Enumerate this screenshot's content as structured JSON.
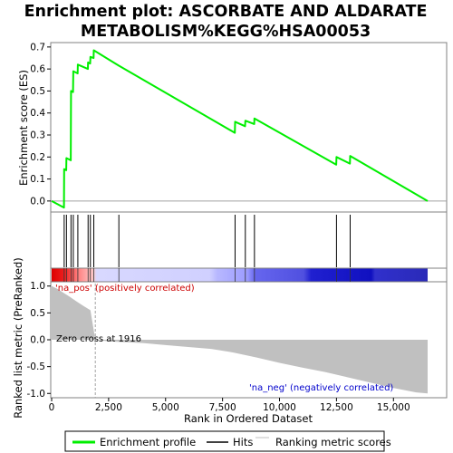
{
  "chart_data": {
    "type": "line",
    "title_line1": "Enrichment plot: ASCORBATE AND ALDARATE",
    "title_line2": "METABOLISM%KEGG%HSA00053",
    "xlabel": "Rank in Ordered Dataset",
    "ylabel_top": "Enrichment score (ES)",
    "ylabel_bottom": "Ranked list metric (PreRanked)",
    "x_ticks": [
      "0",
      "2,500",
      "5,000",
      "7,500",
      "10,000",
      "12,500",
      "15,000"
    ],
    "x_tick_values": [
      0,
      2500,
      5000,
      7500,
      10000,
      12500,
      15000
    ],
    "es_ticks": [
      "0.0",
      "0.1",
      "0.2",
      "0.3",
      "0.4",
      "0.5",
      "0.6",
      "0.7"
    ],
    "es_tick_values": [
      0,
      0.1,
      0.2,
      0.3,
      0.4,
      0.5,
      0.6,
      0.7
    ],
    "metric_ticks": [
      "1.0",
      "0.5",
      "0.0",
      "-0.5",
      "-1.0"
    ],
    "metric_tick_values": [
      1,
      0.5,
      0,
      -0.5,
      -1
    ],
    "xlim": [
      0,
      16500
    ],
    "es_ylim": [
      -0.05,
      0.72
    ],
    "metric_ylim": [
      -1.08,
      1.08
    ],
    "hits": [
      550,
      650,
      850,
      950,
      1150,
      1600,
      1700,
      1850,
      2950,
      8050,
      8500,
      8900,
      12500,
      13100
    ],
    "es_profile": {
      "x": [
        0,
        540,
        550,
        640,
        650,
        840,
        850,
        940,
        950,
        1140,
        1150,
        1590,
        1600,
        1690,
        1700,
        1840,
        1850,
        2950,
        8040,
        8050,
        8490,
        8500,
        8890,
        8900,
        12490,
        12500,
        13090,
        13100,
        16500
      ],
      "y": [
        0.0,
        -0.03,
        0.145,
        0.14,
        0.195,
        0.185,
        0.5,
        0.495,
        0.59,
        0.58,
        0.62,
        0.6,
        0.63,
        0.625,
        0.655,
        0.65,
        0.685,
        0.615,
        0.31,
        0.36,
        0.34,
        0.365,
        0.35,
        0.375,
        0.165,
        0.2,
        0.17,
        0.205,
        0.0
      ]
    },
    "metric_profile": {
      "x": [
        0,
        250,
        500,
        800,
        1100,
        1400,
        1700,
        1916,
        2500,
        4000,
        5000,
        7000,
        8000,
        9000,
        10000,
        11000,
        12000,
        13000,
        14000,
        15000,
        16000,
        16500
      ],
      "y": [
        1.0,
        0.95,
        0.88,
        0.8,
        0.71,
        0.63,
        0.55,
        0.0,
        -0.03,
        -0.06,
        -0.1,
        -0.17,
        -0.24,
        -0.33,
        -0.43,
        -0.52,
        -0.6,
        -0.7,
        -0.8,
        -0.9,
        -0.98,
        -1.0
      ]
    },
    "zero_cross": 1916,
    "annotations": {
      "pos": "'na_pos' (positively correlated)",
      "neg": "'na_neg' (negatively correlated)",
      "zero": "Zero cross at 1916"
    },
    "legend": [
      {
        "label": "Enrichment profile",
        "color": "#00ee00"
      },
      {
        "label": "Hits",
        "color": "#000000"
      },
      {
        "label": "Ranking metric scores",
        "color": "#c0c0c0"
      }
    ],
    "colors": {
      "es_line": "#00ee00",
      "hit": "#000000",
      "metric_fill": "#c0c0c0",
      "pos_text": "#cc0000",
      "neg_text": "#0000cc",
      "panel_border": "#808080"
    }
  }
}
